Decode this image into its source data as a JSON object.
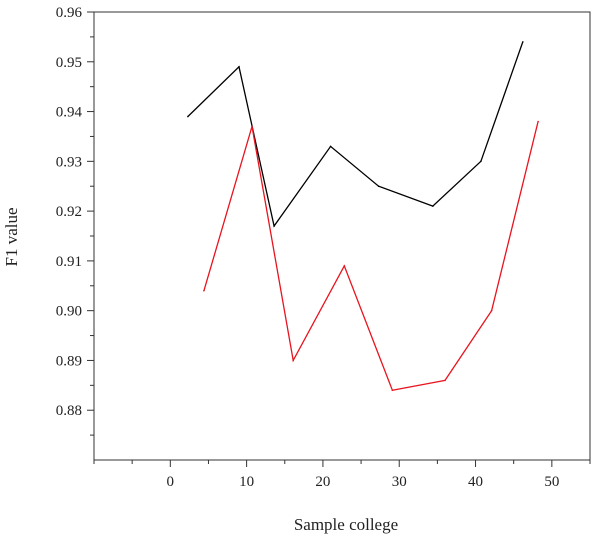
{
  "chart_data": {
    "type": "line",
    "title": "",
    "xlabel": "Sample college",
    "ylabel": "F1 value",
    "xlim": [
      -10,
      55
    ],
    "ylim": [
      0.87,
      0.96
    ],
    "x_ticks": [
      0,
      10,
      20,
      30,
      40,
      50
    ],
    "x_tick_labels": [
      "0",
      "10",
      "20",
      "30",
      "40",
      "50"
    ],
    "y_ticks": [
      0.88,
      0.89,
      0.9,
      0.91,
      0.92,
      0.93,
      0.94,
      0.95,
      0.96
    ],
    "y_tick_labels": [
      "0.88",
      "0.89",
      "0.90",
      "0.91",
      "0.92",
      "0.93",
      "0.94",
      "0.95",
      "0.96"
    ],
    "grid": false,
    "legend": "none",
    "series": [
      {
        "color": "#000000",
        "x": [
          2.3,
          9.0,
          13.6,
          21.0,
          27.3,
          34.4,
          40.7,
          46.2
        ],
        "y": [
          0.939,
          0.949,
          0.917,
          0.933,
          0.925,
          0.921,
          0.93,
          0.954
        ]
      },
      {
        "color": "#e8141e",
        "x": [
          4.4,
          10.7,
          16.1,
          22.8,
          29.1,
          36.0,
          42.1,
          48.2
        ],
        "y": [
          0.904,
          0.937,
          0.89,
          0.909,
          0.884,
          0.886,
          0.9,
          0.938
        ]
      }
    ]
  }
}
